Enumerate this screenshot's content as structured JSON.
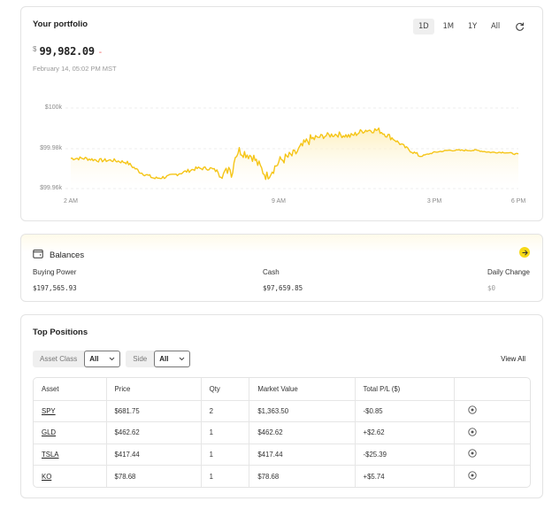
{
  "portfolio": {
    "title": "Your portfolio",
    "currency_symbol": "$",
    "value": "99,982.09",
    "change": "-",
    "timestamp": "February 14, 05:02 PM MST",
    "range_tabs": [
      {
        "label": "1D",
        "active": true
      },
      {
        "label": "1M",
        "active": false
      },
      {
        "label": "1Y",
        "active": false
      },
      {
        "label": "All",
        "active": false
      }
    ],
    "refresh_icon": "refresh-icon"
  },
  "chart_data": {
    "type": "area",
    "title": "",
    "xlabel": "",
    "ylabel": "",
    "y_ticks": [
      "$100k",
      "$99.98k",
      "$99.96k"
    ],
    "x_ticks": [
      "2 AM",
      "9 AM",
      "3 PM",
      "6 PM"
    ],
    "ylim": [
      99960,
      100000
    ],
    "grid": true,
    "line_color": "#f5c518",
    "fill_color": "#fdf1c4",
    "x": [
      "2:00",
      "2:30",
      "3:00",
      "3:30",
      "4:00",
      "4:30",
      "5:00",
      "5:30",
      "6:00",
      "6:30",
      "7:00",
      "7:30",
      "8:00",
      "8:30",
      "9:00",
      "9:30",
      "10:00",
      "10:30",
      "11:00",
      "11:30",
      "12:00",
      "12:30",
      "13:00",
      "13:30",
      "14:00",
      "14:30",
      "15:00",
      "15:30",
      "16:00",
      "16:30",
      "17:00",
      "17:30",
      "18:00"
    ],
    "values": [
      99975,
      99975,
      99974,
      99974,
      99973,
      99968,
      99965,
      99966,
      99968,
      99970,
      99970,
      99967,
      99979,
      99976,
      99966,
      99974,
      99977,
      99984,
      99986,
      99987,
      99986,
      99989,
      99989,
      99985,
      99980,
      99976,
      99978,
      99979,
      99979,
      99979,
      99978,
      99978,
      99977
    ]
  },
  "balances": {
    "title": "Balances",
    "items": [
      {
        "label": "Buying Power",
        "value": "$197,565.93"
      },
      {
        "label": "Cash",
        "value": "$97,659.85"
      },
      {
        "label": "Daily Change",
        "value": "$0"
      }
    ]
  },
  "positions": {
    "title": "Top Positions",
    "filters": [
      {
        "label": "Asset Class",
        "value": "All"
      },
      {
        "label": "Side",
        "value": "All"
      }
    ],
    "view_all": "View All",
    "columns": [
      "Asset",
      "Price",
      "Qty",
      "Market Value",
      "Total P/L ($)",
      ""
    ],
    "rows": [
      {
        "asset": "SPY",
        "price": "$681.75",
        "qty": "2",
        "market_value": "$1,363.50",
        "pl": "-$0.85",
        "pl_sign": "neg"
      },
      {
        "asset": "GLD",
        "price": "$462.62",
        "qty": "1",
        "market_value": "$462.62",
        "pl": "+$2.62",
        "pl_sign": "pos"
      },
      {
        "asset": "TSLA",
        "price": "$417.44",
        "qty": "1",
        "market_value": "$417.44",
        "pl": "-$25.39",
        "pl_sign": "neg"
      },
      {
        "asset": "KO",
        "price": "$78.68",
        "qty": "1",
        "market_value": "$78.68",
        "pl": "+$5.74",
        "pl_sign": "pos"
      }
    ]
  },
  "colors": {
    "accent": "#f5c518",
    "negative": "#ef5b5b",
    "positive": "#2fae4f"
  }
}
